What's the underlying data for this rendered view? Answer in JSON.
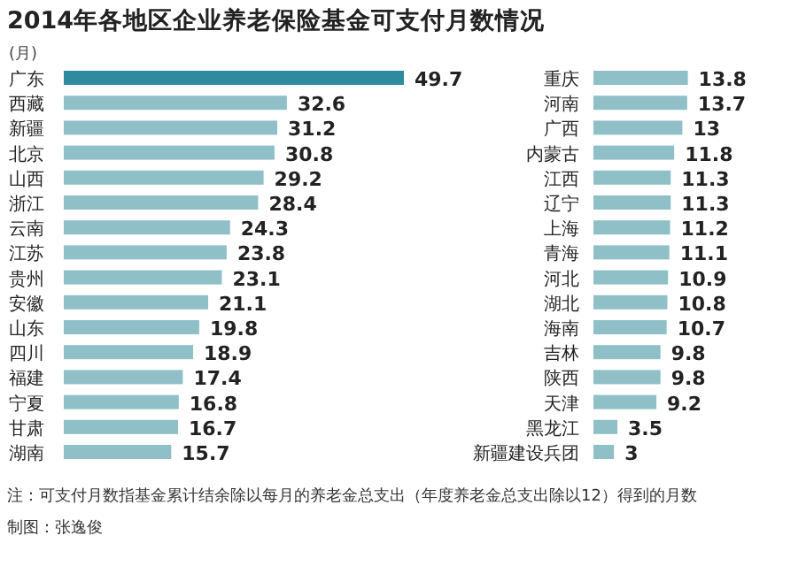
{
  "chart_data": [
    {
      "type": "bar",
      "orientation": "horizontal",
      "data_labels": true,
      "title": "2014年各地区企业养老保险基金可支付月数情况",
      "ylabel": "(月)",
      "categories": [
        "广东",
        "西藏",
        "新疆",
        "北京",
        "山西",
        "浙江",
        "云南",
        "江苏",
        "贵州",
        "安徽",
        "山东",
        "四川",
        "福建",
        "宁夏",
        "甘肃",
        "湖南"
      ],
      "values": [
        49.7,
        32.6,
        31.2,
        30.8,
        29.2,
        28.4,
        24.3,
        23.8,
        23.1,
        21.1,
        19.8,
        18.9,
        17.4,
        16.8,
        16.7,
        15.7
      ],
      "colors": [
        "#2e8a9e",
        "#8fc0c8",
        "#8fc0c8",
        "#8fc0c8",
        "#8fc0c8",
        "#8fc0c8",
        "#8fc0c8",
        "#8fc0c8",
        "#8fc0c8",
        "#8fc0c8",
        "#8fc0c8",
        "#8fc0c8",
        "#8fc0c8",
        "#8fc0c8",
        "#8fc0c8",
        "#8fc0c8"
      ],
      "annotations": [
        "注：可支付月数指基金累计结余除以每月的养老金总支出（年度养老金总支出除以12）得到的月数",
        "制图：张逸俊"
      ]
    },
    {
      "type": "bar",
      "orientation": "horizontal",
      "data_labels": true,
      "categories": [
        "重庆",
        "河南",
        "广西",
        "内蒙古",
        "江西",
        "辽宁",
        "上海",
        "青海",
        "河北",
        "湖北",
        "海南",
        "吉林",
        "陕西",
        "天津",
        "黑龙江",
        "新疆建设兵团"
      ],
      "values": [
        13.8,
        13.7,
        13,
        11.8,
        11.3,
        11.3,
        11.2,
        11.1,
        10.9,
        10.8,
        10.7,
        9.8,
        9.8,
        9.2,
        3.5,
        3
      ],
      "colors": [
        "#8fc0c8",
        "#8fc0c8",
        "#8fc0c8",
        "#8fc0c8",
        "#8fc0c8",
        "#8fc0c8",
        "#8fc0c8",
        "#8fc0c8",
        "#8fc0c8",
        "#8fc0c8",
        "#8fc0c8",
        "#8fc0c8",
        "#8fc0c8",
        "#8fc0c8",
        "#8fc0c8",
        "#8fc0c8"
      ]
    }
  ]
}
